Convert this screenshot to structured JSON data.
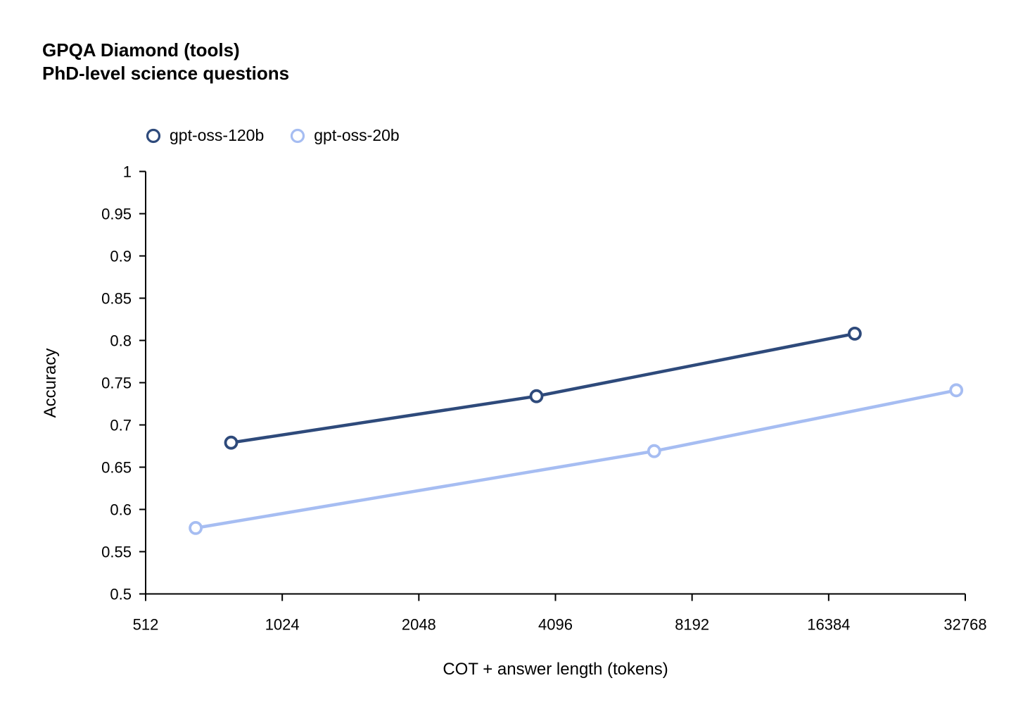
{
  "colors": {
    "axis": "#000000",
    "text": "#000000",
    "background": "#ffffff",
    "series_120b": "#2e4a7b",
    "series_20b": "#a6bdf2"
  },
  "chart_data": {
    "type": "line",
    "title": "GPQA Diamond (tools)",
    "subtitle": "PhD-level science questions",
    "xlabel": "COT + answer length (tokens)",
    "ylabel": "Accuracy",
    "x_scale": "log2",
    "xlim": [
      512,
      32768
    ],
    "ylim": [
      0.5,
      1.0
    ],
    "x_ticks": [
      512,
      1024,
      2048,
      4096,
      8192,
      16384,
      32768
    ],
    "y_ticks": [
      1,
      0.95,
      0.9,
      0.85,
      0.8,
      0.75,
      0.7,
      0.65,
      0.6,
      0.55,
      0.5
    ],
    "grid": false,
    "legend_position": "top-left-above-plot",
    "marker_style": "open-circle-white-fill",
    "series": [
      {
        "name": "gpt-oss-120b",
        "color": "#2e4a7b",
        "points": [
          {
            "x": 790,
            "y": 0.679
          },
          {
            "x": 3720,
            "y": 0.734
          },
          {
            "x": 18700,
            "y": 0.808
          }
        ]
      },
      {
        "name": "gpt-oss-20b",
        "color": "#a6bdf2",
        "points": [
          {
            "x": 660,
            "y": 0.578
          },
          {
            "x": 6760,
            "y": 0.669
          },
          {
            "x": 31300,
            "y": 0.741
          }
        ]
      }
    ]
  }
}
